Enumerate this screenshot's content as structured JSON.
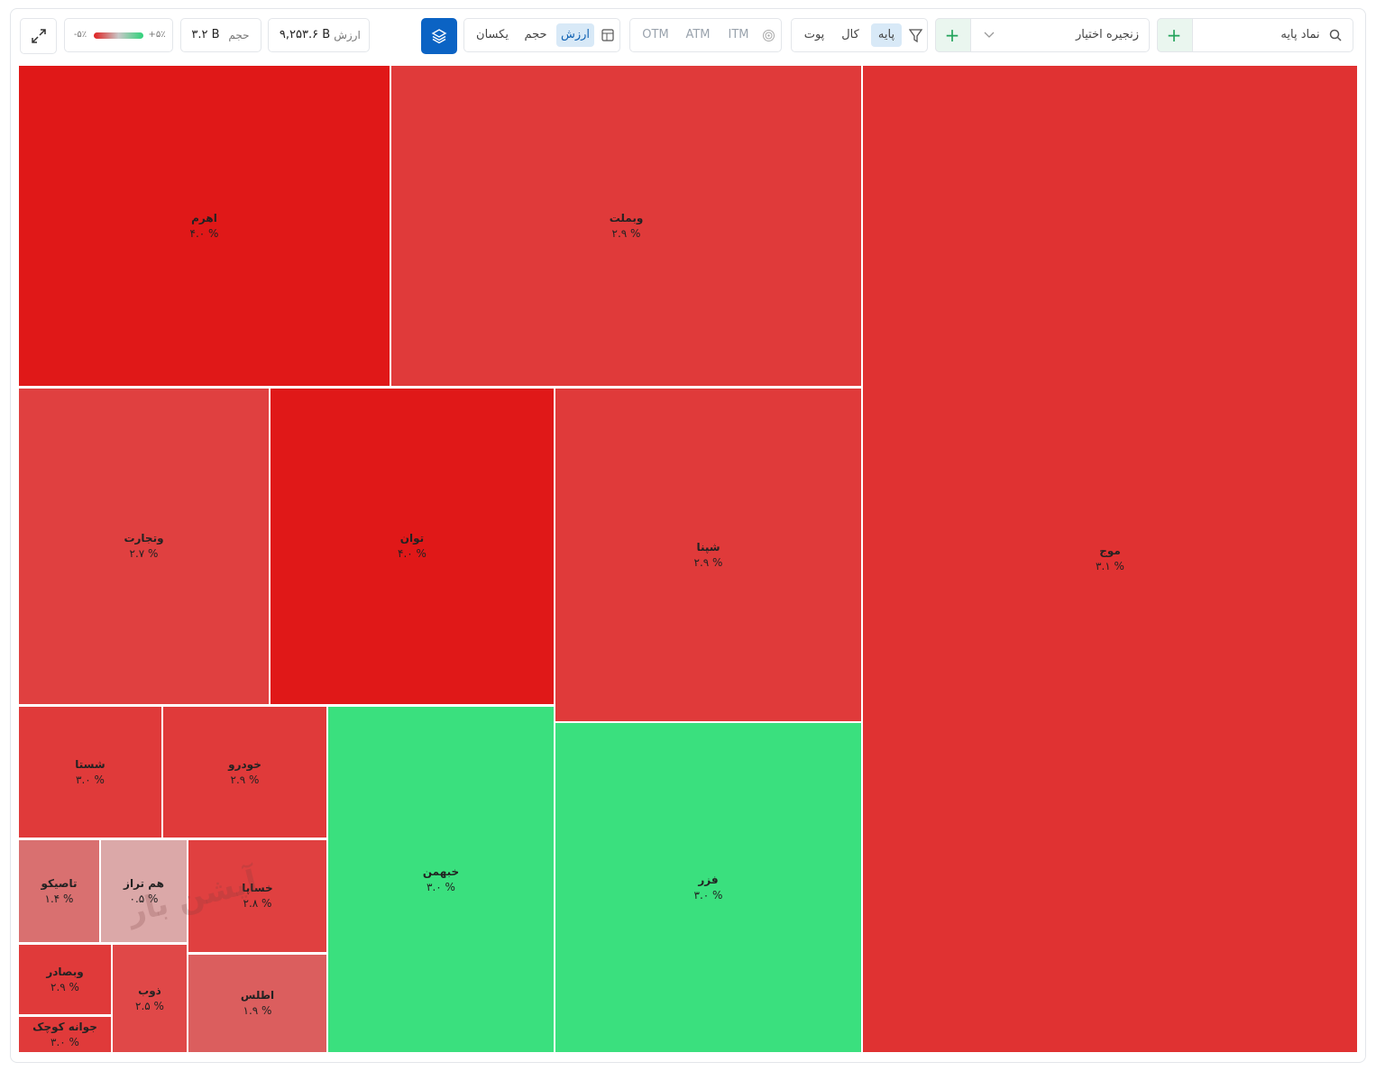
{
  "toolbar": {
    "search_placeholder": "نماد پایه",
    "chain_select": "زنجیره اختیار",
    "filter": {
      "options": [
        "پایه",
        "کال",
        "پوت"
      ],
      "active": 0
    },
    "moneyness": [
      "ITM",
      "ATM",
      "OTM"
    ],
    "size_by": {
      "options": [
        "ارزش",
        "حجم",
        "یکسان"
      ],
      "active": 0
    },
    "stats": {
      "value_label": "ارزش",
      "value": "۹,۲۵۳.۶ B",
      "volume_label": "حجم",
      "volume": "۳.۲ B"
    },
    "legend": {
      "min": "-۵٪",
      "max": "+۵٪"
    }
  },
  "treemap": {
    "watermark": "آپشن بار",
    "tiles": [
      {
        "label": "اهرم",
        "change": "۴.۰ %",
        "color": "#e01818"
      },
      {
        "label": "وبملت",
        "change": "۲.۹ %",
        "color": "#e03a3a"
      },
      {
        "label": "موج",
        "change": "۳.۱ %",
        "color": "#e03232"
      },
      {
        "label": "وتجارت",
        "change": "۲.۷ %",
        "color": "#e04040"
      },
      {
        "label": "توان",
        "change": "۴.۰ %",
        "color": "#e01818"
      },
      {
        "label": "شپنا",
        "change": "۲.۹ %",
        "color": "#e03a3a"
      },
      {
        "label": "شستا",
        "change": "۳.۰ %",
        "color": "#e03a3a"
      },
      {
        "label": "خودرو",
        "change": "۲.۹ %",
        "color": "#e03a3a"
      },
      {
        "label": "خبهمن",
        "change": "۳.۰ %",
        "color": "#3ae07e"
      },
      {
        "label": "فزر",
        "change": "۳.۰ %",
        "color": "#3ae07e"
      },
      {
        "label": "تاصیکو",
        "change": "۱.۴ %",
        "color": "#d97070"
      },
      {
        "label": "هم تراز",
        "change": "۰.۵ %",
        "color": "#dba8a8"
      },
      {
        "label": "خساپا",
        "change": "۲.۸ %",
        "color": "#e04040"
      },
      {
        "label": "وبصادر",
        "change": "۲.۹ %",
        "color": "#e03a3a"
      },
      {
        "label": "ذوب",
        "change": "۲.۵ %",
        "color": "#e04848"
      },
      {
        "label": "اطلس",
        "change": "۱.۹ %",
        "color": "#db5e5e"
      },
      {
        "label": "جوانه کوچک",
        "change": "۳.۰ %",
        "color": "#e03a3a"
      }
    ]
  }
}
